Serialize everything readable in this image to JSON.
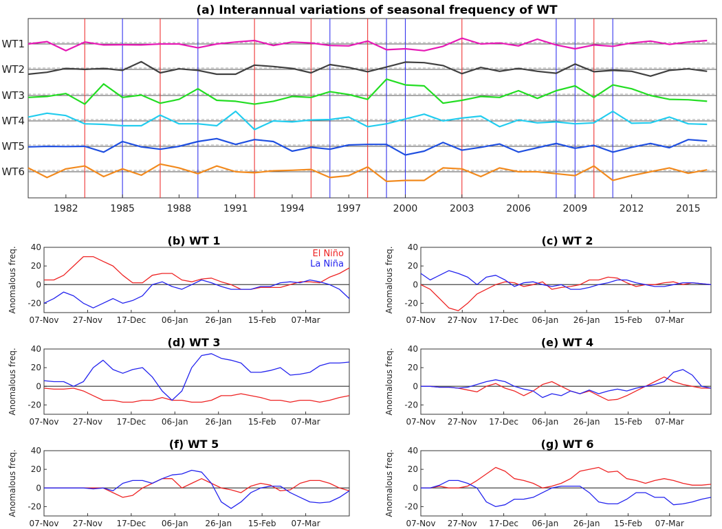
{
  "chart_data": [
    {
      "id": "a",
      "type": "line",
      "title": "(a) Interannual variations of seasonal frequency of WT",
      "x_ticks": [
        1982,
        1985,
        1988,
        1991,
        1994,
        1997,
        2000,
        2003,
        2006,
        2009,
        2012,
        2015
      ],
      "xlim": [
        1980,
        2016.5
      ],
      "rows": [
        "WT1",
        "WT2",
        "WT3",
        "WT4",
        "WT5",
        "WT6"
      ],
      "el_nino_years": [
        1983,
        1987,
        1992,
        1995,
        1998,
        2003,
        2010
      ],
      "la_nina_years": [
        1985,
        1989,
        1996,
        1999,
        2000,
        2008,
        2009,
        2011
      ],
      "colors": {
        "WT1": "#e619b5",
        "WT2": "#404040",
        "WT3": "#22dd22",
        "WT4": "#22ccee",
        "WT5": "#1f4fe0",
        "WT6": "#f28a1e",
        "el_nino": "#ee3333",
        "la_nina": "#3333ee"
      },
      "years": [
        1980,
        1981,
        1982,
        1983,
        1984,
        1985,
        1986,
        1987,
        1988,
        1989,
        1990,
        1991,
        1992,
        1993,
        1994,
        1995,
        1996,
        1997,
        1998,
        1999,
        2000,
        2001,
        2002,
        2003,
        2004,
        2005,
        2006,
        2007,
        2008,
        2009,
        2010,
        2011,
        2012,
        2013,
        2014,
        2015,
        2016
      ],
      "series": [
        {
          "name": "WT1",
          "values": [
            0.0,
            0.12,
            -0.35,
            0.1,
            -0.05,
            -0.04,
            -0.05,
            0.0,
            0.0,
            -0.2,
            0.0,
            0.1,
            0.18,
            -0.08,
            0.1,
            0.05,
            -0.08,
            -0.1,
            0.15,
            -0.3,
            -0.25,
            -0.35,
            -0.12,
            0.3,
            0.0,
            0.05,
            -0.1,
            0.25,
            -0.05,
            -0.25,
            -0.05,
            -0.12,
            0.05,
            0.15,
            -0.02,
            0.1,
            0.18
          ]
        },
        {
          "name": "WT2",
          "values": [
            -0.25,
            -0.15,
            0.05,
            0.0,
            0.05,
            -0.05,
            0.4,
            -0.18,
            0.03,
            -0.05,
            -0.25,
            -0.25,
            0.22,
            0.15,
            0.05,
            -0.18,
            0.25,
            0.1,
            -0.12,
            0.12,
            0.38,
            0.35,
            0.2,
            -0.22,
            0.1,
            -0.1,
            0.05,
            -0.1,
            -0.2,
            0.28,
            -0.12,
            -0.05,
            -0.1,
            -0.35,
            -0.05,
            0.03,
            -0.1
          ]
        },
        {
          "name": "WT3",
          "values": [
            -0.1,
            -0.05,
            0.1,
            -0.45,
            0.6,
            -0.1,
            0.02,
            -0.4,
            -0.2,
            0.35,
            -0.25,
            -0.3,
            -0.45,
            -0.3,
            -0.05,
            -0.1,
            0.2,
            0.05,
            -0.2,
            0.85,
            0.55,
            0.5,
            -0.4,
            -0.25,
            -0.05,
            -0.1,
            0.25,
            -0.15,
            0.25,
            0.5,
            -0.1,
            0.55,
            0.35,
            0.0,
            -0.2,
            -0.22,
            -0.3
          ]
        },
        {
          "name": "WT4",
          "values": [
            0.2,
            0.4,
            0.28,
            -0.15,
            -0.18,
            -0.25,
            -0.25,
            0.3,
            -0.15,
            -0.15,
            -0.25,
            0.5,
            -0.45,
            0.0,
            -0.05,
            0.05,
            0.07,
            0.2,
            -0.3,
            -0.15,
            0.1,
            0.35,
            0.0,
            0.15,
            0.25,
            -0.3,
            0.05,
            -0.1,
            -0.05,
            -0.15,
            -0.1,
            0.5,
            -0.12,
            -0.1,
            0.2,
            -0.15,
            -0.18
          ]
        },
        {
          "name": "WT5",
          "values": [
            -0.03,
            0.0,
            -0.01,
            0.0,
            -0.3,
            0.25,
            -0.03,
            -0.15,
            0.0,
            0.25,
            0.4,
            0.1,
            0.35,
            0.25,
            -0.25,
            -0.05,
            -0.15,
            0.07,
            0.1,
            0.1,
            -0.45,
            -0.25,
            0.2,
            -0.2,
            -0.05,
            0.12,
            -0.3,
            -0.07,
            0.15,
            -0.1,
            0.05,
            -0.3,
            -0.05,
            0.15,
            -0.07,
            0.35,
            0.28
          ]
        },
        {
          "name": "WT6",
          "values": [
            0.2,
            -0.3,
            0.15,
            0.3,
            -0.25,
            0.15,
            -0.18,
            0.4,
            0.2,
            -0.1,
            0.3,
            0.0,
            -0.05,
            0.05,
            0.08,
            0.12,
            -0.3,
            -0.2,
            0.25,
            -0.5,
            -0.45,
            -0.45,
            0.2,
            0.15,
            -0.25,
            0.2,
            0.0,
            0.0,
            -0.1,
            -0.2,
            0.3,
            -0.45,
            -0.2,
            0.0,
            0.2,
            -0.08,
            0.1
          ]
        }
      ]
    },
    {
      "id": "b",
      "type": "line",
      "title": "(b) WT 1",
      "ylabel": "Anomalous freq.",
      "ylim": [
        -30,
        40
      ],
      "y_ticks": [
        40,
        20,
        0,
        -20
      ],
      "x_tick_labels": [
        "07-Nov",
        "27-Nov",
        "17-Dec",
        "06-Jan",
        "26-Jan",
        "15-Feb",
        "07-Mar"
      ],
      "legend": [
        "El Niño",
        "La Niña"
      ],
      "legend_colors": [
        "#ee2222",
        "#2222ee"
      ],
      "series": [
        {
          "name": "El Niño",
          "color": "#ee2222",
          "values": [
            5,
            5,
            10,
            20,
            30,
            30,
            25,
            20,
            10,
            2,
            2,
            10,
            12,
            12,
            5,
            3,
            6,
            7,
            3,
            0,
            -5,
            -5,
            -3,
            -3,
            -3,
            0,
            3,
            3,
            2,
            8,
            12,
            18
          ]
        },
        {
          "name": "La Niña",
          "color": "#2222ee",
          "values": [
            -20,
            -15,
            -8,
            -12,
            -20,
            -25,
            -20,
            -15,
            -20,
            -17,
            -12,
            0,
            3,
            -2,
            -5,
            0,
            5,
            2,
            -2,
            -5,
            -5,
            -5,
            -2,
            -2,
            2,
            3,
            2,
            5,
            3,
            0,
            -5,
            -15
          ]
        }
      ]
    },
    {
      "id": "c",
      "type": "line",
      "title": "(c) WT 2",
      "ylabel": "Anomalous freq.",
      "ylim": [
        -30,
        40
      ],
      "y_ticks": [
        40,
        20,
        0,
        -20
      ],
      "x_tick_labels": [
        "07-Nov",
        "27-Nov",
        "17-Dec",
        "06-Jan",
        "26-Jan",
        "15-Feb",
        "07-Mar"
      ],
      "series": [
        {
          "name": "El Niño",
          "color": "#ee2222",
          "values": [
            0,
            -5,
            -15,
            -25,
            -28,
            -20,
            -10,
            -5,
            0,
            3,
            2,
            -2,
            0,
            3,
            -5,
            -3,
            -2,
            0,
            5,
            5,
            8,
            7,
            2,
            -2,
            0,
            0,
            2,
            3,
            0,
            2,
            1,
            0
          ]
        },
        {
          "name": "La Niña",
          "color": "#2222ee",
          "values": [
            12,
            5,
            10,
            15,
            12,
            8,
            0,
            8,
            10,
            5,
            -2,
            2,
            3,
            0,
            -2,
            0,
            -5,
            -5,
            -3,
            0,
            2,
            5,
            5,
            2,
            0,
            -2,
            -2,
            0,
            2,
            2,
            1,
            0
          ]
        }
      ]
    },
    {
      "id": "d",
      "type": "line",
      "title": "(d) WT 3",
      "ylabel": "Anomalous freq.",
      "ylim": [
        -30,
        40
      ],
      "y_ticks": [
        40,
        20,
        0,
        -20
      ],
      "x_tick_labels": [
        "07-Nov",
        "27-Nov",
        "17-Dec",
        "06-Jan",
        "26-Jan",
        "15-Feb",
        "07-Mar"
      ],
      "series": [
        {
          "name": "El Niño",
          "color": "#ee2222",
          "values": [
            -2,
            -3,
            -3,
            -2,
            -5,
            -10,
            -15,
            -15,
            -17,
            -17,
            -15,
            -15,
            -12,
            -15,
            -15,
            -17,
            -17,
            -15,
            -10,
            -10,
            -8,
            -10,
            -12,
            -15,
            -15,
            -17,
            -15,
            -15,
            -17,
            -15,
            -12,
            -10
          ]
        },
        {
          "name": "La Niña",
          "color": "#2222ee",
          "values": [
            6,
            5,
            5,
            0,
            5,
            20,
            28,
            18,
            14,
            18,
            20,
            10,
            -5,
            -15,
            -5,
            20,
            33,
            35,
            30,
            28,
            25,
            15,
            15,
            17,
            20,
            12,
            13,
            15,
            22,
            25,
            25,
            26
          ]
        }
      ]
    },
    {
      "id": "e",
      "type": "line",
      "title": "(e) WT 4",
      "ylabel": "Anomalous freq.",
      "ylim": [
        -30,
        40
      ],
      "y_ticks": [
        40,
        20,
        0,
        -20
      ],
      "x_tick_labels": [
        "07-Nov",
        "27-Nov",
        "17-Dec",
        "06-Jan",
        "26-Jan",
        "15-Feb",
        "07-Mar"
      ],
      "series": [
        {
          "name": "El Niño",
          "color": "#ee2222",
          "values": [
            0,
            0,
            -1,
            -1,
            -2,
            -4,
            -6,
            0,
            3,
            -2,
            -5,
            -10,
            -5,
            2,
            5,
            0,
            -5,
            -8,
            -5,
            -10,
            -15,
            -14,
            -10,
            -5,
            0,
            5,
            10,
            5,
            2,
            0,
            -2,
            -2
          ]
        },
        {
          "name": "La Niña",
          "color": "#2222ee",
          "values": [
            0,
            0,
            -1,
            -1,
            -2,
            -1,
            2,
            5,
            7,
            5,
            0,
            -3,
            -5,
            -12,
            -8,
            -10,
            -5,
            -8,
            -4,
            -8,
            -5,
            -3,
            -5,
            -2,
            0,
            2,
            5,
            15,
            18,
            12,
            0,
            -2
          ]
        }
      ]
    },
    {
      "id": "f",
      "type": "line",
      "title": "(f) WT 5",
      "ylabel": "Anomalous freq.",
      "ylim": [
        -30,
        40
      ],
      "y_ticks": [
        40,
        20,
        0,
        -20
      ],
      "x_tick_labels": [
        "07-Nov",
        "27-Nov",
        "17-Dec",
        "06-Jan",
        "26-Jan",
        "15-Feb",
        "07-Mar"
      ],
      "series": [
        {
          "name": "El Niño",
          "color": "#ee2222",
          "values": [
            0,
            0,
            0,
            0,
            0,
            0,
            0,
            -5,
            -10,
            -8,
            0,
            5,
            10,
            10,
            0,
            5,
            10,
            5,
            0,
            -2,
            -5,
            2,
            5,
            3,
            -3,
            -2,
            5,
            8,
            8,
            5,
            0,
            -3
          ]
        },
        {
          "name": "La Niña",
          "color": "#2222ee",
          "values": [
            0,
            0,
            0,
            0,
            0,
            -1,
            0,
            -3,
            5,
            8,
            8,
            5,
            10,
            14,
            15,
            19,
            17,
            5,
            -15,
            -22,
            -15,
            -5,
            0,
            2,
            2,
            -5,
            -10,
            -15,
            -16,
            -15,
            -10,
            -3
          ]
        }
      ]
    },
    {
      "id": "g",
      "type": "line",
      "title": "(g) WT 6",
      "ylabel": "Anomalous freq.",
      "ylim": [
        -30,
        40
      ],
      "y_ticks": [
        40,
        20,
        0,
        -20
      ],
      "x_tick_labels": [
        "07-Nov",
        "27-Nov",
        "17-Dec",
        "06-Jan",
        "26-Jan",
        "15-Feb",
        "07-Mar"
      ],
      "series": [
        {
          "name": "El Niño",
          "color": "#ee2222",
          "values": [
            0,
            0,
            2,
            0,
            0,
            2,
            8,
            15,
            22,
            18,
            10,
            8,
            5,
            0,
            2,
            5,
            10,
            18,
            20,
            22,
            17,
            18,
            10,
            8,
            5,
            8,
            10,
            8,
            5,
            3,
            3,
            4
          ]
        },
        {
          "name": "La Niña",
          "color": "#2222ee",
          "values": [
            0,
            0,
            3,
            8,
            8,
            5,
            0,
            -15,
            -20,
            -18,
            -12,
            -12,
            -10,
            -5,
            0,
            2,
            2,
            2,
            -5,
            -15,
            -17,
            -17,
            -12,
            -5,
            -5,
            -10,
            -10,
            -18,
            -17,
            -15,
            -12,
            -10
          ]
        }
      ]
    }
  ]
}
